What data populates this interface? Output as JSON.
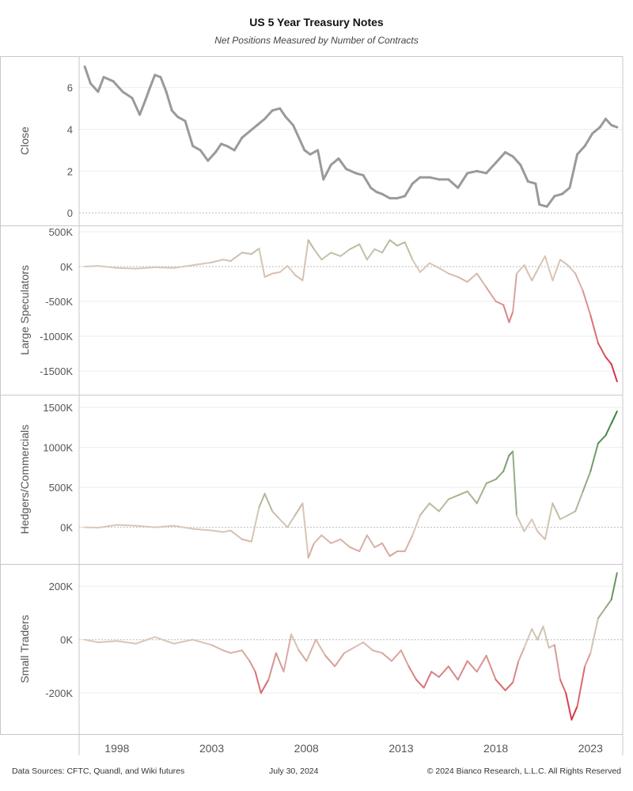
{
  "title": "US 5 Year Treasury Notes",
  "subtitle": "Net Positions Measured by Number of Contracts",
  "footer": {
    "left": "Data Sources: CFTC, Quandl, and Wiki futures",
    "center": "July 30, 2024",
    "right": "© 2024 Bianco Research, L.L.C. All Rights Reserved"
  },
  "colors": {
    "close_line": "#9a9a9a",
    "positive": "#2e7d32",
    "neutral": "#d9c8b8",
    "negative": "#d7263d",
    "grid": "#eeeeee",
    "zero_line": "#bbbbbb",
    "panel_border": "#c8c8c8"
  },
  "chart_data": [
    {
      "type": "line",
      "ylabel": "Close",
      "yticks": [
        0,
        2,
        4,
        6
      ],
      "tick_labels": [
        "0",
        "2",
        "4",
        "6"
      ],
      "ylim": [
        -0.3,
        7.2
      ],
      "xlim": [
        1996.0,
        2024.7
      ],
      "x": [
        1996.3,
        1996.6,
        1997.0,
        1997.3,
        1997.8,
        1998.3,
        1998.8,
        1999.2,
        1999.5,
        1999.7,
        2000.0,
        2000.3,
        2000.6,
        2000.9,
        2001.2,
        2001.6,
        2002.0,
        2002.4,
        2002.8,
        2003.2,
        2003.5,
        2003.8,
        2004.2,
        2004.6,
        2005.0,
        2005.4,
        2005.8,
        2006.2,
        2006.6,
        2006.9,
        2007.3,
        2007.6,
        2007.9,
        2008.2,
        2008.6,
        2008.9,
        2009.3,
        2009.7,
        2010.1,
        2010.6,
        2011.0,
        2011.4,
        2011.7,
        2012.0,
        2012.4,
        2012.8,
        2013.2,
        2013.6,
        2014.0,
        2014.5,
        2015.0,
        2015.5,
        2016.0,
        2016.5,
        2017.0,
        2017.5,
        2018.0,
        2018.5,
        2018.9,
        2019.3,
        2019.7,
        2020.1,
        2020.3,
        2020.7,
        2021.1,
        2021.5,
        2021.9,
        2022.3,
        2022.7,
        2023.1,
        2023.5,
        2023.8,
        2024.1,
        2024.4
      ],
      "series": [
        {
          "name": "Close",
          "values": [
            7.0,
            6.2,
            5.8,
            6.5,
            6.3,
            5.8,
            5.5,
            4.7,
            5.4,
            5.9,
            6.6,
            6.5,
            5.8,
            4.9,
            4.6,
            4.4,
            3.2,
            3.0,
            2.5,
            2.9,
            3.3,
            3.2,
            3.0,
            3.6,
            3.9,
            4.2,
            4.5,
            4.9,
            5.0,
            4.6,
            4.2,
            3.6,
            3.0,
            2.8,
            3.0,
            1.6,
            2.3,
            2.6,
            2.1,
            1.9,
            1.8,
            1.2,
            1.0,
            0.9,
            0.7,
            0.7,
            0.8,
            1.4,
            1.7,
            1.7,
            1.6,
            1.6,
            1.2,
            1.9,
            2.0,
            1.9,
            2.4,
            2.9,
            2.7,
            2.3,
            1.5,
            1.4,
            0.4,
            0.3,
            0.8,
            0.9,
            1.2,
            2.8,
            3.2,
            3.8,
            4.1,
            4.5,
            4.2,
            4.1
          ]
        }
      ]
    },
    {
      "type": "line",
      "ylabel": "Large Speculators",
      "yticks": [
        -1500000,
        -1000000,
        -500000,
        0,
        500000
      ],
      "tick_labels": [
        "-1500K",
        "-1000K",
        "-500K",
        "0K",
        "500K"
      ],
      "ylim": [
        -1750000,
        500000
      ],
      "xlim": [
        1996.0,
        2024.7
      ],
      "x": [
        1996.3,
        1997.0,
        1998.0,
        1999.0,
        2000.0,
        2001.0,
        2002.0,
        2003.0,
        2003.6,
        2004.0,
        2004.6,
        2005.1,
        2005.5,
        2005.8,
        2006.2,
        2006.6,
        2007.0,
        2007.4,
        2007.8,
        2008.1,
        2008.4,
        2008.8,
        2009.3,
        2009.8,
        2010.3,
        2010.8,
        2011.2,
        2011.6,
        2012.0,
        2012.4,
        2012.8,
        2013.2,
        2013.6,
        2014.0,
        2014.5,
        2015.0,
        2015.5,
        2016.0,
        2016.5,
        2017.0,
        2017.5,
        2018.0,
        2018.4,
        2018.7,
        2018.9,
        2019.1,
        2019.5,
        2019.9,
        2020.2,
        2020.6,
        2021.0,
        2021.4,
        2021.8,
        2022.2,
        2022.6,
        2023.0,
        2023.4,
        2023.8,
        2024.1,
        2024.4
      ],
      "series": [
        {
          "name": "Large Speculators",
          "values": [
            0,
            10000,
            -20000,
            -30000,
            -10000,
            -20000,
            20000,
            60000,
            100000,
            80000,
            200000,
            180000,
            260000,
            -150000,
            -100000,
            -80000,
            10000,
            -120000,
            -200000,
            380000,
            250000,
            100000,
            200000,
            150000,
            250000,
            320000,
            100000,
            250000,
            200000,
            380000,
            300000,
            350000,
            100000,
            -80000,
            50000,
            -20000,
            -100000,
            -150000,
            -220000,
            -100000,
            -300000,
            -500000,
            -550000,
            -800000,
            -650000,
            -100000,
            20000,
            -200000,
            -50000,
            150000,
            -200000,
            100000,
            20000,
            -100000,
            -350000,
            -700000,
            -1100000,
            -1300000,
            -1400000,
            -1650000
          ]
        }
      ]
    },
    {
      "type": "line",
      "ylabel": "Hedgers/Commercials",
      "yticks": [
        0,
        500000,
        1000000,
        1500000
      ],
      "tick_labels": [
        "0K",
        "500K",
        "1000K",
        "1500K"
      ],
      "ylim": [
        -380000,
        1580000
      ],
      "xlim": [
        1996.0,
        2024.7
      ],
      "x": [
        1996.3,
        1997.0,
        1998.0,
        1999.0,
        2000.0,
        2001.0,
        2002.0,
        2003.0,
        2003.6,
        2004.0,
        2004.6,
        2005.1,
        2005.5,
        2005.8,
        2006.2,
        2006.6,
        2007.0,
        2007.4,
        2007.8,
        2008.1,
        2008.4,
        2008.8,
        2009.3,
        2009.8,
        2010.3,
        2010.8,
        2011.2,
        2011.6,
        2012.0,
        2012.4,
        2012.8,
        2013.2,
        2013.6,
        2014.0,
        2014.5,
        2015.0,
        2015.5,
        2016.0,
        2016.5,
        2017.0,
        2017.5,
        2018.0,
        2018.4,
        2018.7,
        2018.9,
        2019.1,
        2019.5,
        2019.9,
        2020.2,
        2020.6,
        2021.0,
        2021.4,
        2021.8,
        2022.2,
        2022.6,
        2023.0,
        2023.4,
        2023.8,
        2024.1,
        2024.4
      ],
      "series": [
        {
          "name": "Hedgers/Commercials",
          "values": [
            0,
            -5000,
            30000,
            20000,
            0,
            20000,
            -20000,
            -40000,
            -60000,
            -40000,
            -150000,
            -180000,
            250000,
            420000,
            200000,
            100000,
            0,
            150000,
            300000,
            -380000,
            -200000,
            -100000,
            -200000,
            -150000,
            -250000,
            -300000,
            -100000,
            -250000,
            -200000,
            -360000,
            -300000,
            -300000,
            -100000,
            150000,
            300000,
            200000,
            350000,
            400000,
            450000,
            300000,
            550000,
            600000,
            700000,
            900000,
            950000,
            150000,
            -50000,
            100000,
            -50000,
            -150000,
            300000,
            100000,
            150000,
            200000,
            450000,
            700000,
            1050000,
            1150000,
            1300000,
            1450000
          ]
        }
      ]
    },
    {
      "type": "line",
      "ylabel": "Small Traders",
      "yticks": [
        -200000,
        0,
        200000
      ],
      "tick_labels": [
        "-200K",
        "0K",
        "200K"
      ],
      "ylim": [
        -330000,
        260000
      ],
      "xlim": [
        1996.0,
        2024.7
      ],
      "x": [
        1996.3,
        1997.0,
        1998.0,
        1999.0,
        2000.0,
        2001.0,
        2002.0,
        2003.0,
        2003.6,
        2004.0,
        2004.6,
        2005.0,
        2005.3,
        2005.6,
        2006.0,
        2006.4,
        2006.8,
        2007.2,
        2007.6,
        2008.0,
        2008.5,
        2009.0,
        2009.5,
        2010.0,
        2010.5,
        2011.0,
        2011.5,
        2012.0,
        2012.5,
        2013.0,
        2013.4,
        2013.8,
        2014.2,
        2014.6,
        2015.0,
        2015.5,
        2016.0,
        2016.5,
        2017.0,
        2017.5,
        2018.0,
        2018.5,
        2018.9,
        2019.2,
        2019.5,
        2019.9,
        2020.2,
        2020.5,
        2020.8,
        2021.1,
        2021.4,
        2021.7,
        2022.0,
        2022.3,
        2022.7,
        2023.0,
        2023.4,
        2023.8,
        2024.1,
        2024.4
      ],
      "series": [
        {
          "name": "Small Traders",
          "values": [
            0,
            -10000,
            -5000,
            -15000,
            10000,
            -15000,
            0,
            -20000,
            -40000,
            -50000,
            -40000,
            -80000,
            -120000,
            -200000,
            -150000,
            -50000,
            -120000,
            20000,
            -40000,
            -80000,
            0,
            -60000,
            -100000,
            -50000,
            -30000,
            -10000,
            -40000,
            -50000,
            -80000,
            -40000,
            -100000,
            -150000,
            -180000,
            -120000,
            -140000,
            -100000,
            -150000,
            -80000,
            -120000,
            -60000,
            -150000,
            -190000,
            -160000,
            -80000,
            -30000,
            40000,
            0,
            50000,
            -30000,
            -20000,
            -150000,
            -200000,
            -300000,
            -250000,
            -100000,
            -50000,
            80000,
            120000,
            150000,
            250000
          ]
        }
      ]
    }
  ],
  "x_axis": {
    "ticks": [
      1998,
      2003,
      2008,
      2013,
      2018,
      2023
    ],
    "tick_labels": [
      "1998",
      "2003",
      "2008",
      "2013",
      "2018",
      "2023"
    ]
  }
}
